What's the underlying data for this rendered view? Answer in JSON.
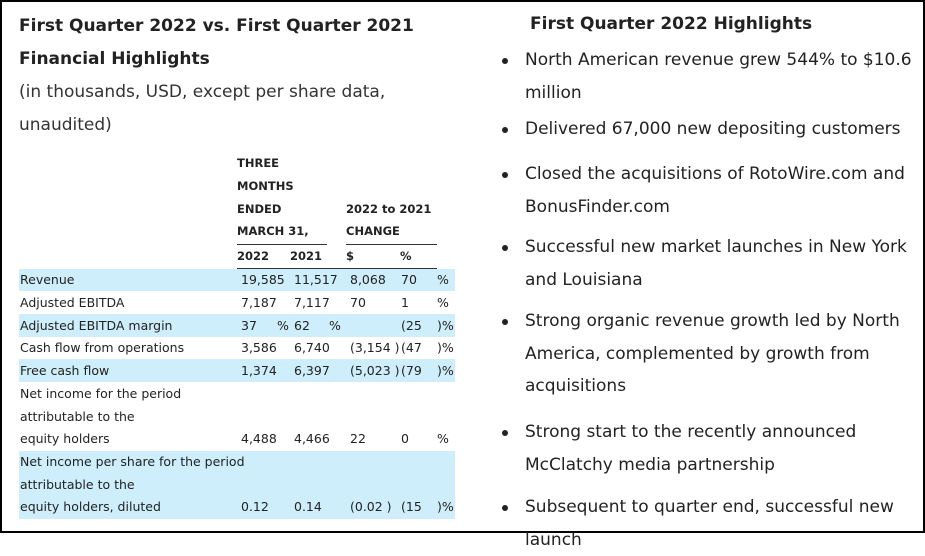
{
  "left": {
    "title": "First Quarter 2022 vs. First Quarter 2021 Financial Highlights",
    "subtitle": "(in thousands, USD, except per share data, unaudited)"
  },
  "table": {
    "header": {
      "three": "THREE",
      "months": "MONTHS",
      "ended": "ENDED",
      "march": "MARCH 31,",
      "change_a": "2022 to 2021",
      "change_b": "CHANGE",
      "col_2022": "2022",
      "col_2021": "2021",
      "col_dollar": "$",
      "col_pct": "%"
    },
    "rows": [
      {
        "label": "Revenue",
        "v2022": "19,585",
        "v2021": "11,517",
        "chg": "8,068",
        "pct": "70",
        "suffix": "%"
      },
      {
        "label": "Adjusted EBITDA",
        "v2022": "7,187",
        "v2021": "7,117",
        "chg": "70",
        "pct": "1",
        "suffix": "%"
      },
      {
        "label": "Adjusted EBITDA margin",
        "v2022": "37",
        "p1": "%",
        "v2021": "62",
        "p2": "%",
        "chg": "",
        "pct": "(25",
        "suffix": ")%"
      },
      {
        "label": "Cash flow from operations",
        "v2022": "3,586",
        "v2021": "6,740",
        "chg": "(3,154 )",
        "pct": "(47",
        "suffix": ")%"
      },
      {
        "label": "Free cash flow",
        "v2022": "1,374",
        "v2021": "6,397",
        "chg": "(5,023 )",
        "pct": "(79",
        "suffix": ")%"
      },
      {
        "label1": "Net income for the period",
        "label2": "attributable to the",
        "label3": "equity holders",
        "v2022": "4,488",
        "v2021": "4,466",
        "chg": "22",
        "pct": "0",
        "suffix": "%"
      },
      {
        "label1": "Net income per share for the period",
        "label2": "attributable to the",
        "label3": "equity holders, diluted",
        "v2022": "0.12",
        "v2021": "0.14",
        "chg": "(0.02 )",
        "pct": "(15",
        "suffix": ")%"
      }
    ]
  },
  "right": {
    "title": "First Quarter 2022 Highlights",
    "bullets": [
      "North American revenue grew 544% to $10.6 million",
      "Delivered 67,000 new depositing customers",
      "Closed the acquisitions of RotoWire.com and BonusFinder.com",
      "Successful new market launches in New York and Louisiana",
      "Strong organic revenue growth led by North America, complemented by growth from acquisitions",
      "Strong start to the recently announced McClatchy media partnership",
      "Subsequent to quarter end, successful new launch"
    ]
  }
}
